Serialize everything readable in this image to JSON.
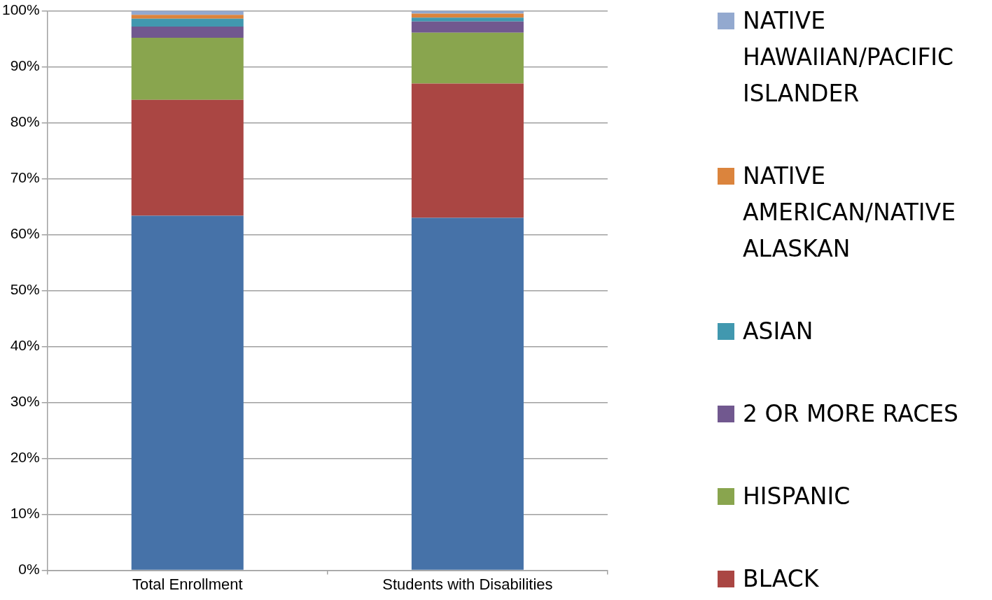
{
  "chart_data": {
    "type": "bar",
    "stacked": true,
    "categories": [
      "Total Enrollment",
      "Students with Disabilities"
    ],
    "series": [
      {
        "color": "#4672a8",
        "values": [
          63.4,
          63.0
        ]
      },
      {
        "name": "BLACK",
        "color": "#aa4643",
        "values": [
          20.7,
          24.0
        ]
      },
      {
        "name": "HISPANIC",
        "color": "#89a54e",
        "values": [
          11.1,
          9.1
        ]
      },
      {
        "name": "2 OR MORE RACES",
        "color": "#71588f",
        "values": [
          2.0,
          2.0
        ]
      },
      {
        "name": "ASIAN",
        "color": "#4198af",
        "values": [
          1.4,
          0.7
        ]
      },
      {
        "name": "NATIVE AMERICAN/NATIVE ALASKAN",
        "color": "#db843d",
        "values": [
          0.7,
          0.7
        ]
      },
      {
        "name": "NATIVE HAWAIIAN/PACIFIC ISLANDER",
        "color": "#93a9cf",
        "values": [
          0.7,
          0.5
        ]
      }
    ],
    "ylim": [
      0,
      100
    ],
    "yticks": [
      {
        "value": 0,
        "label": "0%"
      },
      {
        "value": 10,
        "label": "10%"
      },
      {
        "value": 20,
        "label": "20%"
      },
      {
        "value": 30,
        "label": "30%"
      },
      {
        "value": 40,
        "label": "40%"
      },
      {
        "value": 50,
        "label": "50%"
      },
      {
        "value": 60,
        "label": "60%"
      },
      {
        "value": 70,
        "label": "70%"
      },
      {
        "value": 80,
        "label": "80%"
      },
      {
        "value": 90,
        "label": "90%"
      },
      {
        "value": 100,
        "label": "100%"
      }
    ],
    "grid": "y",
    "legend": "right"
  }
}
